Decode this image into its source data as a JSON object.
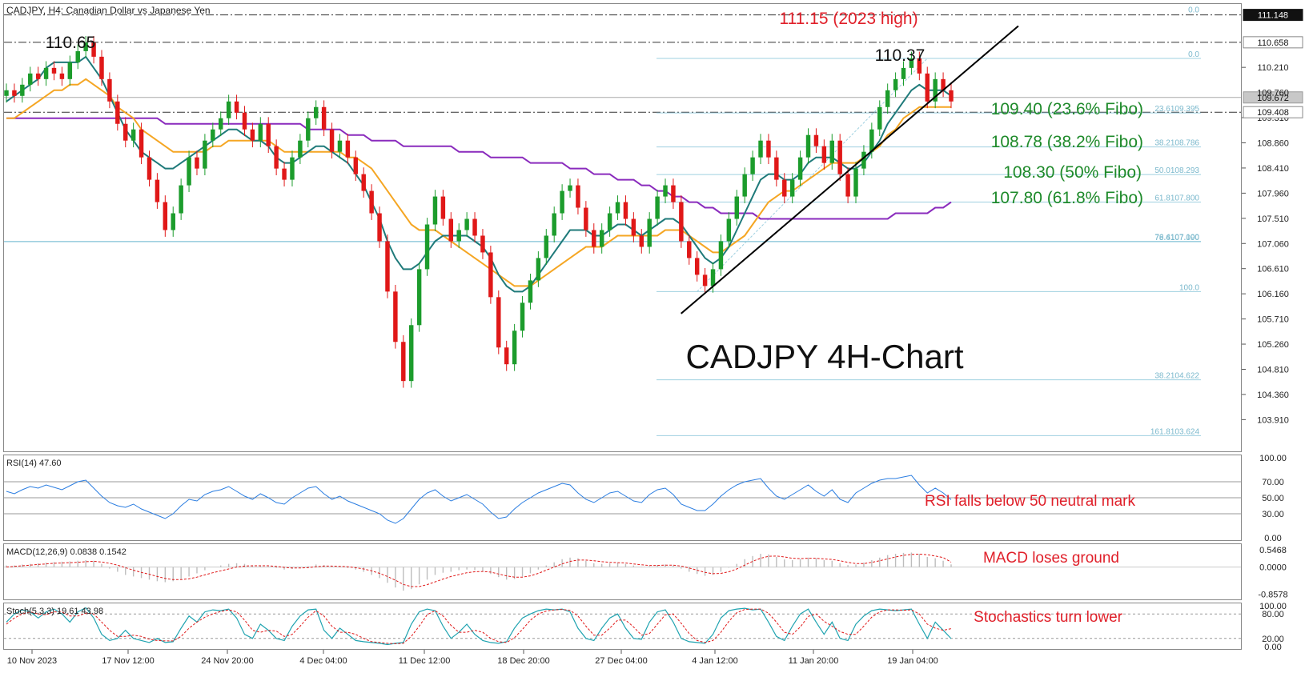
{
  "window": {
    "symbol_header": "CADJPY, H4:  Canadian Dollar vs Japanese Yen"
  },
  "chart_data": {
    "type": "line",
    "title": "CADJPY 4H-Chart",
    "main_price": {
      "ylim": [
        103.4,
        111.3
      ],
      "y_ticks": [
        "110.210",
        "109.310",
        "108.860",
        "108.410",
        "107.960",
        "107.510",
        "107.060",
        "106.610",
        "106.160",
        "105.710",
        "105.260",
        "104.810",
        "104.360",
        "103.910"
      ],
      "x_ticks": [
        "10 Nov 2023",
        "17 Nov 12:00",
        "24 Nov 20:00",
        "4 Dec 04:00",
        "11 Dec 12:00",
        "18 Dec 20:00",
        "27 Dec 04:00",
        "4 Jan 12:00",
        "11 Jan 20:00",
        "19 Jan 04:00"
      ],
      "highlight_labels": [
        {
          "text": "111.148",
          "value": 111.148,
          "style": "dark"
        },
        {
          "text": "110.658",
          "value": 110.658,
          "style": "light"
        },
        {
          "text": "109.672",
          "value": 109.672,
          "style": "gray"
        },
        {
          "text": "109.408",
          "value": 109.408,
          "style": "light"
        },
        {
          "text": "109.760",
          "value": 109.76,
          "style": "plain"
        }
      ],
      "close_series": [
        109.8,
        109.7,
        109.9,
        110.1,
        110.0,
        110.2,
        110.1,
        110.0,
        110.3,
        110.5,
        110.65,
        110.4,
        110.0,
        109.6,
        109.2,
        108.9,
        109.1,
        108.6,
        108.2,
        107.8,
        107.3,
        107.6,
        108.1,
        108.6,
        108.4,
        108.9,
        109.1,
        109.3,
        109.6,
        109.4,
        109.1,
        108.9,
        109.2,
        108.8,
        108.4,
        108.2,
        108.6,
        108.9,
        109.3,
        109.5,
        109.1,
        108.7,
        108.9,
        108.6,
        108.3,
        108.0,
        107.6,
        107.1,
        106.2,
        105.3,
        104.6,
        105.6,
        106.6,
        107.4,
        107.9,
        107.5,
        107.1,
        107.3,
        107.5,
        107.2,
        106.9,
        106.1,
        105.2,
        104.9,
        105.5,
        106.0,
        106.4,
        106.8,
        107.2,
        107.6,
        108.0,
        108.1,
        107.7,
        107.3,
        107.0,
        107.3,
        107.6,
        107.8,
        107.5,
        107.2,
        107.0,
        107.5,
        107.9,
        108.1,
        107.8,
        107.1,
        106.8,
        106.5,
        106.3,
        106.6,
        107.1,
        107.5,
        107.9,
        108.3,
        108.6,
        108.9,
        108.6,
        108.2,
        107.9,
        108.2,
        108.6,
        109.0,
        108.8,
        108.5,
        108.9,
        108.3,
        107.9,
        108.4,
        108.7,
        109.1,
        109.5,
        109.8,
        110.0,
        110.2,
        110.37,
        110.1,
        109.6,
        110.0,
        109.8,
        109.6
      ],
      "ema_fast": [
        109.6,
        109.7,
        109.8,
        109.9,
        110.0,
        110.2,
        110.3,
        110.3,
        110.3,
        110.3,
        110.4,
        110.2,
        110.0,
        109.7,
        109.4,
        109.1,
        108.9,
        108.7,
        108.6,
        108.5,
        108.4,
        108.4,
        108.5,
        108.6,
        108.7,
        108.8,
        108.9,
        109.0,
        109.1,
        109.1,
        109.0,
        108.9,
        108.9,
        108.8,
        108.6,
        108.5,
        108.5,
        108.6,
        108.7,
        108.8,
        108.8,
        108.7,
        108.6,
        108.5,
        108.3,
        108.1,
        107.8,
        107.5,
        107.1,
        106.8,
        106.6,
        106.6,
        106.7,
        106.9,
        107.1,
        107.2,
        107.2,
        107.2,
        107.2,
        107.1,
        107.0,
        106.8,
        106.5,
        106.3,
        106.2,
        106.2,
        106.3,
        106.5,
        106.7,
        106.9,
        107.1,
        107.3,
        107.3,
        107.3,
        107.2,
        107.2,
        107.3,
        107.4,
        107.4,
        107.3,
        107.2,
        107.3,
        107.4,
        107.5,
        107.5,
        107.4,
        107.2,
        107.0,
        106.8,
        106.7,
        106.8,
        107.0,
        107.3,
        107.6,
        107.9,
        108.2,
        108.3,
        108.3,
        108.2,
        108.2,
        108.3,
        108.5,
        108.6,
        108.6,
        108.6,
        108.5,
        108.4,
        108.4,
        108.5,
        108.7,
        108.9,
        109.2,
        109.4,
        109.6,
        109.8,
        109.9,
        109.8,
        109.8,
        109.8,
        109.7
      ],
      "ema_slow": [
        109.3,
        109.3,
        109.4,
        109.5,
        109.6,
        109.7,
        109.8,
        109.8,
        109.9,
        109.9,
        110.0,
        109.9,
        109.8,
        109.7,
        109.5,
        109.4,
        109.3,
        109.1,
        109.0,
        108.9,
        108.8,
        108.7,
        108.7,
        108.7,
        108.7,
        108.7,
        108.8,
        108.8,
        108.9,
        108.9,
        108.9,
        108.9,
        108.9,
        108.9,
        108.8,
        108.7,
        108.7,
        108.7,
        108.7,
        108.7,
        108.7,
        108.7,
        108.7,
        108.6,
        108.6,
        108.5,
        108.4,
        108.2,
        108.0,
        107.8,
        107.6,
        107.4,
        107.3,
        107.3,
        107.3,
        107.2,
        107.1,
        107.0,
        106.9,
        106.8,
        106.7,
        106.6,
        106.5,
        106.4,
        106.3,
        106.3,
        106.3,
        106.4,
        106.5,
        106.6,
        106.7,
        106.8,
        106.9,
        107.0,
        107.0,
        107.0,
        107.1,
        107.2,
        107.2,
        107.2,
        107.2,
        107.2,
        107.2,
        107.3,
        107.3,
        107.3,
        107.2,
        107.1,
        107.0,
        106.9,
        106.9,
        107.0,
        107.1,
        107.2,
        107.4,
        107.6,
        107.8,
        107.9,
        108.0,
        108.0,
        108.1,
        108.2,
        108.3,
        108.4,
        108.5,
        108.5,
        108.5,
        108.5,
        108.6,
        108.7,
        108.8,
        109.0,
        109.1,
        109.3,
        109.4,
        109.5,
        109.5,
        109.5,
        109.5,
        109.5
      ],
      "sma_200": [
        109.3,
        109.3,
        109.3,
        109.3,
        109.3,
        109.3,
        109.3,
        109.3,
        109.3,
        109.3,
        109.3,
        109.3,
        109.3,
        109.3,
        109.3,
        109.3,
        109.3,
        109.3,
        109.3,
        109.3,
        109.2,
        109.2,
        109.2,
        109.2,
        109.2,
        109.2,
        109.2,
        109.2,
        109.2,
        109.2,
        109.2,
        109.2,
        109.2,
        109.2,
        109.2,
        109.2,
        109.2,
        109.2,
        109.1,
        109.1,
        109.1,
        109.1,
        109.1,
        109.0,
        109.0,
        109.0,
        108.9,
        108.9,
        108.9,
        108.9,
        108.8,
        108.8,
        108.8,
        108.8,
        108.8,
        108.8,
        108.8,
        108.7,
        108.7,
        108.7,
        108.7,
        108.6,
        108.6,
        108.6,
        108.6,
        108.6,
        108.5,
        108.5,
        108.5,
        108.5,
        108.5,
        108.4,
        108.4,
        108.4,
        108.3,
        108.3,
        108.3,
        108.2,
        108.2,
        108.2,
        108.1,
        108.1,
        108.0,
        108.0,
        107.9,
        107.9,
        107.8,
        107.8,
        107.7,
        107.7,
        107.6,
        107.6,
        107.6,
        107.6,
        107.6,
        107.5,
        107.5,
        107.5,
        107.5,
        107.5,
        107.5,
        107.5,
        107.5,
        107.5,
        107.5,
        107.5,
        107.5,
        107.5,
        107.5,
        107.5,
        107.5,
        107.5,
        107.6,
        107.6,
        107.6,
        107.6,
        107.6,
        107.7,
        107.7,
        107.8
      ],
      "horizontal_levels": [
        {
          "value": 111.148,
          "style": "dash-dot"
        },
        {
          "value": 110.658,
          "style": "dash-dot"
        },
        {
          "value": 109.408,
          "style": "dash-dot"
        }
      ],
      "fibonacci": [
        {
          "value": 110.37,
          "label": "0.0"
        },
        {
          "value": 109.395,
          "label": "23.6109.395"
        },
        {
          "value": 108.786,
          "label": "38.2108.786"
        },
        {
          "value": 108.293,
          "label": "50.0108.293"
        },
        {
          "value": 107.8,
          "label": "61.8107.800"
        },
        {
          "value": 107.1,
          "label": "76.4107.100"
        },
        {
          "value": 107.09,
          "label": "78.6107.090"
        },
        {
          "value": 106.2,
          "label": "100.0"
        },
        {
          "value": 104.622,
          "label": "38.2104.622"
        },
        {
          "value": 103.624,
          "label": "161.8103.624"
        }
      ],
      "fibo_top_label": "0.0",
      "trendline": {
        "from": {
          "index": 87,
          "value": 105.95
        },
        "to": {
          "index": 138,
          "value": 110.2
        }
      },
      "annotations": [
        {
          "text": "111.15 (2023 high)",
          "color": "#e0202a"
        },
        {
          "text": "110.65",
          "color": "#111111"
        },
        {
          "text": "110.37",
          "color": "#111111"
        },
        {
          "text": "109.40 (23.6% Fibo)",
          "color": "#1e8a2a"
        },
        {
          "text": "108.78 (38.2% Fibo)",
          "color": "#1e8a2a"
        },
        {
          "text": "108.30 (50% Fibo)",
          "color": "#1e8a2a"
        },
        {
          "text": "107.80 (61.8% Fibo)",
          "color": "#1e8a2a"
        }
      ]
    },
    "rsi": {
      "label": "RSI(14) 47.60",
      "ylim": [
        0,
        100
      ],
      "y_ticks": [
        "100.00",
        "70.00",
        "50.00",
        "30.00",
        "0.00"
      ],
      "levels": [
        70,
        50,
        30
      ],
      "values": [
        58,
        55,
        60,
        64,
        62,
        66,
        63,
        60,
        65,
        70,
        72,
        62,
        52,
        44,
        40,
        38,
        42,
        36,
        32,
        28,
        24,
        30,
        40,
        48,
        46,
        54,
        58,
        60,
        64,
        58,
        52,
        48,
        55,
        50,
        44,
        42,
        50,
        56,
        62,
        64,
        55,
        48,
        52,
        46,
        42,
        38,
        34,
        30,
        22,
        18,
        24,
        36,
        48,
        56,
        60,
        52,
        46,
        50,
        54,
        48,
        42,
        32,
        24,
        26,
        36,
        44,
        50,
        56,
        60,
        64,
        68,
        66,
        56,
        48,
        44,
        50,
        56,
        58,
        52,
        46,
        44,
        54,
        60,
        62,
        54,
        42,
        38,
        34,
        34,
        42,
        52,
        60,
        66,
        70,
        72,
        74,
        62,
        52,
        48,
        54,
        60,
        66,
        58,
        52,
        60,
        48,
        44,
        56,
        62,
        68,
        72,
        74,
        74,
        76,
        78,
        66,
        56,
        62,
        56,
        47.6
      ],
      "annotation": "RSI falls below 50 neutral mark"
    },
    "macd": {
      "label": "MACD(12,26,9) 0.0838 0.1542",
      "ylim": [
        -0.95,
        0.65
      ],
      "y_ticks": [
        "0.5468",
        "0.0000",
        "-0.8578"
      ],
      "histogram": [
        0.05,
        0.05,
        0.08,
        0.1,
        0.12,
        0.14,
        0.16,
        0.17,
        0.18,
        0.2,
        0.22,
        0.2,
        0.1,
        -0.05,
        -0.15,
        -0.25,
        -0.3,
        -0.35,
        -0.4,
        -0.45,
        -0.48,
        -0.45,
        -0.38,
        -0.3,
        -0.2,
        -0.1,
        0.0,
        0.05,
        0.1,
        0.12,
        0.1,
        0.05,
        0.04,
        0.02,
        -0.03,
        -0.08,
        -0.06,
        -0.02,
        0.03,
        0.08,
        0.06,
        0.02,
        0.01,
        -0.03,
        -0.08,
        -0.15,
        -0.25,
        -0.35,
        -0.5,
        -0.65,
        -0.75,
        -0.7,
        -0.55,
        -0.4,
        -0.25,
        -0.18,
        -0.15,
        -0.1,
        -0.08,
        -0.1,
        -0.14,
        -0.22,
        -0.32,
        -0.4,
        -0.38,
        -0.3,
        -0.2,
        -0.08,
        0.05,
        0.15,
        0.25,
        0.3,
        0.28,
        0.2,
        0.12,
        0.1,
        0.12,
        0.14,
        0.1,
        0.05,
        0.01,
        0.03,
        0.06,
        0.08,
        0.05,
        -0.05,
        -0.15,
        -0.22,
        -0.28,
        -0.25,
        -0.15,
        -0.02,
        0.1,
        0.25,
        0.35,
        0.42,
        0.4,
        0.32,
        0.24,
        0.22,
        0.25,
        0.3,
        0.28,
        0.22,
        0.2,
        0.12,
        0.06,
        0.08,
        0.14,
        0.22,
        0.3,
        0.38,
        0.42,
        0.45,
        0.46,
        0.42,
        0.32,
        0.28,
        0.2,
        0.0838
      ],
      "signal": [
        0.0,
        0.02,
        0.04,
        0.06,
        0.08,
        0.1,
        0.12,
        0.13,
        0.14,
        0.15,
        0.17,
        0.18,
        0.16,
        0.12,
        0.06,
        -0.02,
        -0.1,
        -0.17,
        -0.23,
        -0.3,
        -0.36,
        -0.4,
        -0.4,
        -0.37,
        -0.32,
        -0.25,
        -0.18,
        -0.12,
        -0.06,
        0.0,
        0.03,
        0.04,
        0.04,
        0.04,
        0.02,
        -0.01,
        -0.03,
        -0.03,
        -0.02,
        0.01,
        0.03,
        0.03,
        0.02,
        0.01,
        -0.02,
        -0.06,
        -0.12,
        -0.2,
        -0.3,
        -0.42,
        -0.55,
        -0.62,
        -0.62,
        -0.56,
        -0.47,
        -0.38,
        -0.3,
        -0.24,
        -0.18,
        -0.15,
        -0.14,
        -0.16,
        -0.22,
        -0.28,
        -0.32,
        -0.32,
        -0.28,
        -0.2,
        -0.1,
        0.0,
        0.1,
        0.18,
        0.22,
        0.22,
        0.2,
        0.17,
        0.15,
        0.14,
        0.13,
        0.1,
        0.07,
        0.05,
        0.05,
        0.06,
        0.06,
        0.03,
        -0.03,
        -0.1,
        -0.17,
        -0.21,
        -0.2,
        -0.15,
        -0.06,
        0.06,
        0.18,
        0.28,
        0.34,
        0.35,
        0.32,
        0.28,
        0.27,
        0.28,
        0.28,
        0.26,
        0.24,
        0.2,
        0.15,
        0.11,
        0.11,
        0.15,
        0.2,
        0.26,
        0.32,
        0.37,
        0.4,
        0.41,
        0.39,
        0.35,
        0.3,
        0.1542
      ],
      "annotation": "MACD loses ground"
    },
    "stochastic": {
      "label": "Stoch(5,3,3) 19.61 43.98",
      "ylim": [
        0,
        100
      ],
      "y_ticks": [
        "100.00",
        "80.00",
        "20.00",
        "0.00"
      ],
      "levels": [
        80,
        20
      ],
      "k": [
        60,
        80,
        90,
        85,
        70,
        85,
        92,
        80,
        60,
        85,
        95,
        70,
        30,
        15,
        20,
        40,
        20,
        15,
        10,
        20,
        10,
        12,
        45,
        75,
        60,
        85,
        90,
        88,
        92,
        70,
        30,
        20,
        55,
        40,
        20,
        15,
        50,
        75,
        90,
        92,
        40,
        20,
        45,
        30,
        15,
        12,
        10,
        8,
        5,
        8,
        10,
        55,
        85,
        92,
        88,
        50,
        20,
        35,
        55,
        30,
        15,
        10,
        8,
        12,
        45,
        70,
        80,
        88,
        92,
        90,
        92,
        85,
        45,
        20,
        15,
        45,
        70,
        80,
        45,
        20,
        18,
        60,
        85,
        90,
        60,
        20,
        12,
        10,
        8,
        30,
        70,
        88,
        92,
        94,
        90,
        92,
        60,
        25,
        15,
        50,
        80,
        92,
        60,
        30,
        60,
        20,
        15,
        55,
        75,
        88,
        92,
        90,
        88,
        90,
        92,
        55,
        20,
        60,
        40,
        19.61
      ],
      "d": [
        55,
        70,
        80,
        85,
        80,
        78,
        85,
        85,
        75,
        75,
        82,
        80,
        60,
        40,
        25,
        25,
        28,
        25,
        18,
        15,
        14,
        14,
        25,
        45,
        60,
        72,
        80,
        86,
        90,
        85,
        65,
        40,
        35,
        40,
        38,
        25,
        30,
        50,
        72,
        88,
        75,
        50,
        35,
        35,
        30,
        20,
        12,
        10,
        8,
        7,
        8,
        25,
        50,
        78,
        88,
        75,
        52,
        35,
        35,
        40,
        35,
        20,
        12,
        10,
        22,
        42,
        65,
        80,
        87,
        90,
        91,
        89,
        75,
        50,
        28,
        28,
        45,
        65,
        65,
        48,
        28,
        32,
        55,
        78,
        80,
        57,
        32,
        15,
        10,
        15,
        35,
        62,
        83,
        91,
        92,
        92,
        82,
        60,
        35,
        30,
        48,
        74,
        80,
        62,
        50,
        37,
        30,
        30,
        50,
        72,
        85,
        90,
        90,
        89,
        90,
        80,
        55,
        45,
        40,
        43.98
      ],
      "annotation": "Stochastics turn lower"
    }
  }
}
